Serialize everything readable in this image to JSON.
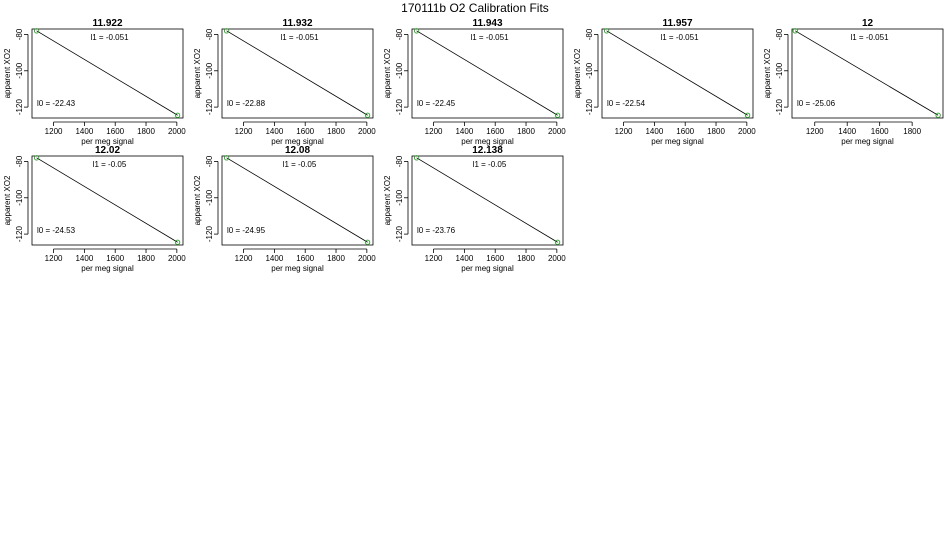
{
  "figure": {
    "title": "170111b   O2 Calibration Fits"
  },
  "chart_data": [
    {
      "type": "line",
      "title": "11.922",
      "xlabel": "per meg signal",
      "ylabel": "apparent XO2",
      "xticks": [
        1200,
        1400,
        1600,
        1800,
        2000
      ],
      "yticks": [
        -80,
        -100,
        -120
      ],
      "xlim": [
        1060,
        2040
      ],
      "ylim": [
        -126,
        -77
      ],
      "l1_text": "l1 =  -0.051",
      "l0_text": "l0 =  -22.43",
      "series": [
        {
          "x": [
            1090,
            2005
          ],
          "y": [
            -78.0,
            -124.5
          ]
        }
      ]
    },
    {
      "type": "line",
      "title": "11.932",
      "xlabel": "per meg signal",
      "ylabel": "apparent XO2",
      "xticks": [
        1200,
        1400,
        1600,
        1800,
        2000
      ],
      "yticks": [
        -80,
        -100,
        -120
      ],
      "xlim": [
        1060,
        2040
      ],
      "ylim": [
        -126,
        -77
      ],
      "l1_text": "l1 =  -0.051",
      "l0_text": "l0 =  -22.88",
      "series": [
        {
          "x": [
            1090,
            2005
          ],
          "y": [
            -78.0,
            -124.5
          ]
        }
      ]
    },
    {
      "type": "line",
      "title": "11.943",
      "xlabel": "per meg signal",
      "ylabel": "apparent XO2",
      "xticks": [
        1200,
        1400,
        1600,
        1800,
        2000
      ],
      "yticks": [
        -80,
        -100,
        -120
      ],
      "xlim": [
        1060,
        2040
      ],
      "ylim": [
        -126,
        -77
      ],
      "l1_text": "l1 =  -0.051",
      "l0_text": "l0 =  -22.45",
      "series": [
        {
          "x": [
            1090,
            2005
          ],
          "y": [
            -78.0,
            -124.5
          ]
        }
      ]
    },
    {
      "type": "line",
      "title": "11.957",
      "xlabel": "per meg signal",
      "ylabel": "apparent XO2",
      "xticks": [
        1200,
        1400,
        1600,
        1800,
        2000
      ],
      "yticks": [
        -80,
        -100,
        -120
      ],
      "xlim": [
        1060,
        2040
      ],
      "ylim": [
        -126,
        -77
      ],
      "l1_text": "l1 =  -0.051",
      "l0_text": "l0 =  -22.54",
      "series": [
        {
          "x": [
            1090,
            2005
          ],
          "y": [
            -78.0,
            -124.5
          ]
        }
      ]
    },
    {
      "type": "line",
      "title": "12",
      "xlabel": "per meg signal",
      "ylabel": "apparent XO2",
      "xticks": [
        1200,
        1400,
        1600,
        1800
      ],
      "yticks": [
        -80,
        -100,
        -120
      ],
      "xlim": [
        1060,
        1990
      ],
      "ylim": [
        -126,
        -77
      ],
      "l1_text": "l1 =  -0.051",
      "l0_text": "l0 =  -25.06",
      "series": [
        {
          "x": [
            1080,
            1960
          ],
          "y": [
            -78.0,
            -124.5
          ]
        }
      ]
    },
    {
      "type": "line",
      "title": "12.02",
      "xlabel": "per meg signal",
      "ylabel": "apparent XO2",
      "xticks": [
        1200,
        1400,
        1600,
        1800,
        2000
      ],
      "yticks": [
        -80,
        -100,
        -120
      ],
      "xlim": [
        1060,
        2040
      ],
      "ylim": [
        -126,
        -77
      ],
      "l1_text": "l1 =  -0.05",
      "l0_text": "l0 =  -24.53",
      "series": [
        {
          "x": [
            1090,
            2005
          ],
          "y": [
            -78.0,
            -124.5
          ]
        }
      ]
    },
    {
      "type": "line",
      "title": "12.08",
      "xlabel": "per meg signal",
      "ylabel": "apparent XO2",
      "xticks": [
        1200,
        1400,
        1600,
        1800,
        2000
      ],
      "yticks": [
        -80,
        -100,
        -120
      ],
      "xlim": [
        1060,
        2040
      ],
      "ylim": [
        -126,
        -77
      ],
      "l1_text": "l1 =  -0.05",
      "l0_text": "l0 =  -24.95",
      "series": [
        {
          "x": [
            1090,
            2005
          ],
          "y": [
            -78.0,
            -124.5
          ]
        }
      ]
    },
    {
      "type": "line",
      "title": "12.138",
      "xlabel": "per meg signal",
      "ylabel": "apparent XO2",
      "xticks": [
        1200,
        1400,
        1600,
        1800,
        2000
      ],
      "yticks": [
        -80,
        -100,
        -120
      ],
      "xlim": [
        1060,
        2040
      ],
      "ylim": [
        -126,
        -77
      ],
      "l1_text": "l1 =  -0.05",
      "l0_text": "l0 =  -23.76",
      "series": [
        {
          "x": [
            1090,
            2005
          ],
          "y": [
            -78.0,
            -124.5
          ]
        }
      ]
    }
  ]
}
